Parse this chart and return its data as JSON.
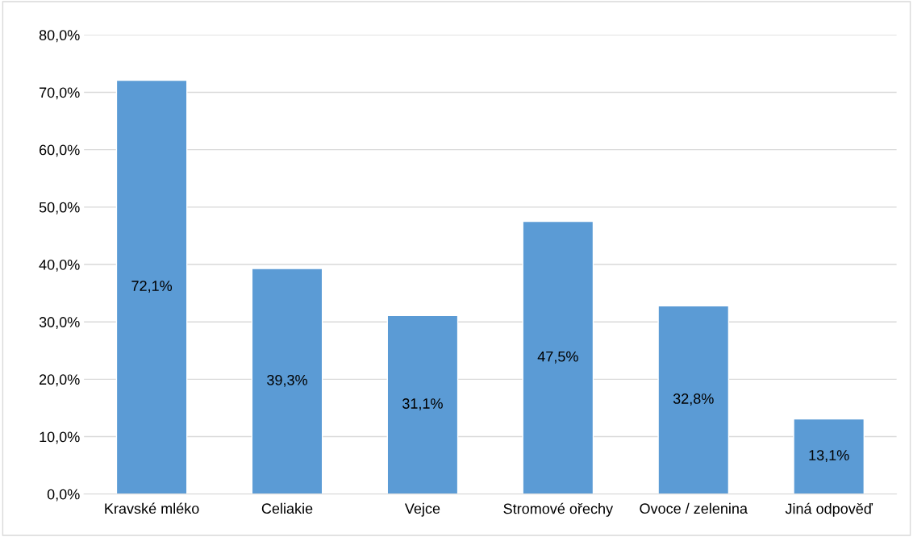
{
  "chart_data": {
    "type": "bar",
    "categories": [
      "Kravské mléko",
      "Celiakie",
      "Vejce",
      "Stromové ořechy",
      "Ovoce / zelenina",
      "Jiná odpověď"
    ],
    "values": [
      72.1,
      39.3,
      31.1,
      47.5,
      32.8,
      13.1
    ],
    "value_labels": [
      "72,1%",
      "39,3%",
      "31,1%",
      "47,5%",
      "32,8%",
      "13,1%"
    ],
    "color": "#5b9bd5",
    "ylim": [
      0,
      80
    ],
    "yticks": [
      {
        "value": 0,
        "label": "0,0%"
      },
      {
        "value": 10,
        "label": "10,0%"
      },
      {
        "value": 20,
        "label": "20,0%"
      },
      {
        "value": 30,
        "label": "30,0%"
      },
      {
        "value": 40,
        "label": "40,0%"
      },
      {
        "value": 50,
        "label": "50,0%"
      },
      {
        "value": 60,
        "label": "60,0%"
      },
      {
        "value": 70,
        "label": "70,0%"
      },
      {
        "value": 80,
        "label": "80,0%"
      }
    ],
    "grid": "y"
  }
}
